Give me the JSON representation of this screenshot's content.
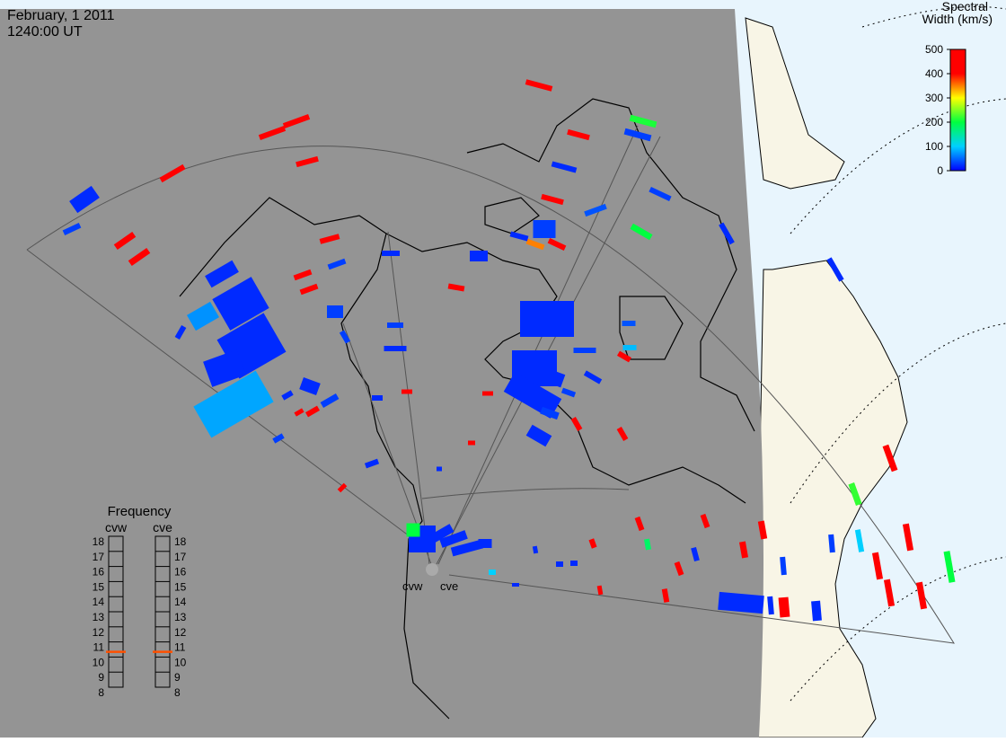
{
  "header": {
    "date": "February, 1 2011",
    "time": "1240:00 UT"
  },
  "colorbar": {
    "title": [
      "Spectral",
      "Width (km/s)"
    ],
    "range": [
      0,
      500
    ],
    "ticks": [
      0,
      100,
      200,
      300,
      400,
      500
    ],
    "colors": [
      "#0000ff",
      "#00d0ff",
      "#00ff40",
      "#ffff00",
      "#ff0000",
      "#ff0000"
    ]
  },
  "frequency": {
    "title": "Frequency",
    "range": [
      8,
      18
    ],
    "ticks": [
      8,
      9,
      10,
      11,
      12,
      13,
      14,
      15,
      16,
      17,
      18
    ],
    "radars": [
      {
        "name": "cvw",
        "value": 10.7
      },
      {
        "name": "cve",
        "value": 10.7
      }
    ]
  },
  "radar_sites": [
    "cvw",
    "cve"
  ],
  "cells": {
    "spectral_width": [
      450,
      480,
      480,
      470,
      470,
      470,
      480,
      470,
      460,
      480,
      480,
      470,
      480,
      470,
      480,
      470,
      480,
      470,
      480,
      220,
      480,
      470,
      480,
      470,
      480,
      480,
      480,
      480,
      480,
      480,
      470,
      480,
      480,
      200,
      180,
      210,
      200,
      350,
      470,
      470,
      470,
      470,
      470,
      20,
      30,
      30,
      20,
      30,
      20,
      20,
      40,
      20,
      30,
      20,
      30,
      20,
      30,
      20,
      30,
      30,
      20,
      30,
      20,
      30,
      20,
      40,
      90,
      30,
      20,
      20,
      20,
      20,
      30,
      20,
      30,
      20,
      20,
      20,
      20,
      20,
      80,
      70,
      20,
      20,
      20,
      20,
      20,
      30,
      30,
      100,
      20,
      20,
      20,
      20,
      100,
      20,
      20,
      20,
      20,
      20,
      20,
      20,
      200
    ]
  }
}
